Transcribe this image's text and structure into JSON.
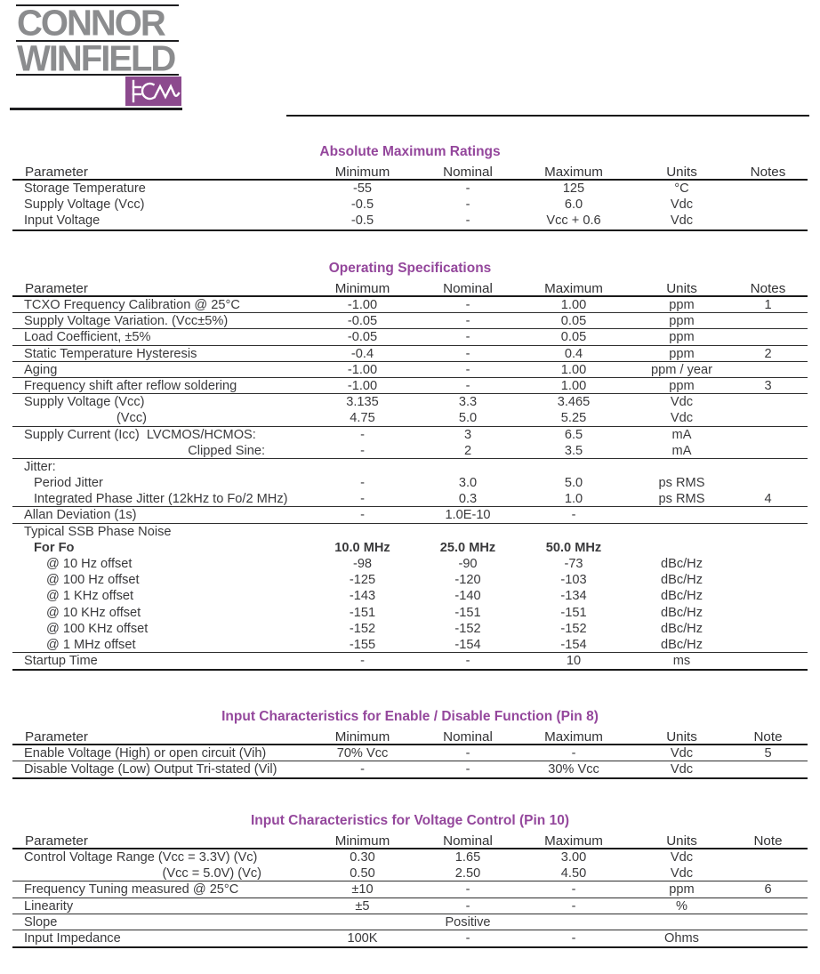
{
  "logo": {
    "line1": "CONNOR",
    "line2": "WINFIELD",
    "monogram_icon": "hcw-waveform-icon",
    "brand_purple": "#8c4a8e",
    "brand_gray": "#8b8c8e"
  },
  "accent_title_color": "#94479c",
  "tables": [
    {
      "title": "Absolute Maximum Ratings",
      "headers": [
        "Parameter",
        "Minimum",
        "Nominal",
        "Maximum",
        "Units",
        "Notes"
      ],
      "rows": [
        {
          "c": [
            "Storage Temperature",
            "-55",
            "-",
            "125",
            "°C",
            ""
          ],
          "v": "",
          "b": false,
          "l": false
        },
        {
          "c": [
            "Supply Voltage (Vcc)",
            "-0.5",
            "-",
            "6.0",
            "Vdc",
            ""
          ],
          "v": "",
          "b": false,
          "l": false
        },
        {
          "c": [
            "Input Voltage",
            "-0.5",
            "-",
            "Vcc + 0.6",
            "Vdc",
            ""
          ],
          "v": "",
          "b": false,
          "l": false
        }
      ]
    },
    {
      "title": "Operating Specifications",
      "headers": [
        "Parameter",
        "Minimum",
        "Nominal",
        "Maximum",
        "Units",
        "Notes"
      ],
      "rows": [
        {
          "c": [
            "TCXO Frequency Calibration @ 25°C",
            "-1.00",
            "-",
            "1.00",
            "ppm",
            "1"
          ],
          "v": "",
          "b": false,
          "l": true
        },
        {
          "c": [
            "Supply Voltage Variation. (Vcc±5%)",
            "-0.05",
            "-",
            "0.05",
            "ppm",
            ""
          ],
          "v": "",
          "b": false,
          "l": true
        },
        {
          "c": [
            "Load Coefficient, ±5%",
            "-0.05",
            "-",
            "0.05",
            "ppm",
            ""
          ],
          "v": "",
          "b": false,
          "l": true
        },
        {
          "c": [
            "Static Temperature Hysteresis",
            "-0.4",
            "-",
            "0.4",
            "ppm",
            "2"
          ],
          "v": "",
          "b": false,
          "l": true
        },
        {
          "c": [
            "Aging",
            "-1.00",
            "-",
            "1.00",
            "ppm / year",
            ""
          ],
          "v": "",
          "b": false,
          "l": true
        },
        {
          "c": [
            "Frequency shift after reflow soldering",
            "-1.00",
            "-",
            "1.00",
            "ppm",
            "3"
          ],
          "v": "",
          "b": false,
          "l": true
        },
        {
          "c": [
            "Supply Voltage (Vcc)",
            "3.135",
            "3.3",
            "3.465",
            "Vdc",
            ""
          ],
          "v": "",
          "b": false,
          "l": false
        },
        {
          "c": [
            "(Vcc)",
            "4.75",
            "5.0",
            "5.25",
            "Vdc",
            ""
          ],
          "v": "rb138",
          "b": false,
          "l": true
        },
        {
          "c": [
            "Supply Current (Icc)  LVCMOS/HCMOS:",
            "-",
            "3",
            "6.5",
            "mA",
            ""
          ],
          "v": "",
          "b": false,
          "l": false
        },
        {
          "c": [
            "Clipped Sine:",
            "-",
            "2",
            "3.5",
            "mA",
            ""
          ],
          "v": "rb271",
          "b": false,
          "l": true
        },
        {
          "c": [
            "Jitter:",
            "",
            "",
            "",
            "",
            ""
          ],
          "v": "",
          "b": false,
          "l": false
        },
        {
          "c": [
            "Period Jitter",
            "-",
            "3.0",
            "5.0",
            "ps RMS",
            ""
          ],
          "v": "i1",
          "b": false,
          "l": false
        },
        {
          "c": [
            "Integrated Phase Jitter (12kHz to Fo/2 MHz)",
            "-",
            "0.3",
            "1.0",
            "ps RMS",
            "4"
          ],
          "v": "i1",
          "b": false,
          "l": true
        },
        {
          "c": [
            "Allan Deviation (1s)",
            "-",
            "1.0E-10",
            "-",
            "",
            ""
          ],
          "v": "",
          "b": false,
          "l": true
        },
        {
          "c": [
            "Typical SSB Phase Noise",
            "",
            "",
            "",
            "",
            ""
          ],
          "v": "",
          "b": false,
          "l": false
        },
        {
          "c": [
            "For Fo",
            "10.0 MHz",
            "25.0 MHz",
            "50.0 MHz",
            "",
            ""
          ],
          "v": "i1",
          "b": true,
          "l": false
        },
        {
          "c": [
            "@ 10 Hz offset",
            "-98",
            "-90",
            "-73",
            "dBc/Hz",
            ""
          ],
          "v": "i2",
          "b": false,
          "l": false
        },
        {
          "c": [
            "@ 100 Hz offset",
            "-125",
            "-120",
            "-103",
            "dBc/Hz",
            ""
          ],
          "v": "i2",
          "b": false,
          "l": false
        },
        {
          "c": [
            "@ 1 KHz offset",
            "-143",
            "-140",
            "-134",
            "dBc/Hz",
            ""
          ],
          "v": "i2",
          "b": false,
          "l": false
        },
        {
          "c": [
            "@ 10 KHz offset",
            "-151",
            "-151",
            "-151",
            "dBc/Hz",
            ""
          ],
          "v": "i2",
          "b": false,
          "l": false
        },
        {
          "c": [
            "@ 100 KHz offset",
            "-152",
            "-152",
            "-152",
            "dBc/Hz",
            ""
          ],
          "v": "i2",
          "b": false,
          "l": false
        },
        {
          "c": [
            "@ 1 MHz offset",
            "-155",
            "-154",
            "-154",
            "dBc/Hz",
            ""
          ],
          "v": "i2",
          "b": false,
          "l": true
        },
        {
          "c": [
            "Startup Time",
            "-",
            "-",
            "10",
            "ms",
            ""
          ],
          "v": "",
          "b": false,
          "l": false
        }
      ]
    },
    {
      "title": "Input Characteristics for Enable / Disable Function (Pin 8)",
      "headers": [
        "Parameter",
        "Minimum",
        "Nominal",
        "Maximum",
        "Units",
        "Note"
      ],
      "rows": [
        {
          "c": [
            "Enable Voltage (High) or open circuit (Vih)",
            "70% Vcc",
            "-",
            "-",
            "Vdc",
            "5"
          ],
          "v": "",
          "b": false,
          "l": true
        },
        {
          "c": [
            "Disable Voltage (Low) Output Tri-stated (Vil)",
            "-",
            "-",
            "30% Vcc",
            "Vdc",
            ""
          ],
          "v": "",
          "b": false,
          "l": false
        }
      ]
    },
    {
      "title": "Input Characteristics for Voltage Control (Pin 10)",
      "headers": [
        "Parameter",
        "Minimum",
        "Nominal",
        "Maximum",
        "Units",
        "Note"
      ],
      "rows": [
        {
          "c": [
            "Control Voltage Range (Vcc = 3.3V) (Vc)",
            "0.30",
            "1.65",
            "3.00",
            "Vdc",
            ""
          ],
          "v": "",
          "b": false,
          "l": false
        },
        {
          "c": [
            "(Vcc = 5.0V) (Vc)",
            "0.50",
            "2.50",
            "4.50",
            "Vdc",
            ""
          ],
          "v": "rb267",
          "b": false,
          "l": true
        },
        {
          "c": [
            "Frequency Tuning measured @ 25°C",
            "±10",
            "-",
            "-",
            "ppm",
            "6"
          ],
          "v": "",
          "b": false,
          "l": true
        },
        {
          "c": [
            "Linearity",
            "±5",
            "-",
            "-",
            "%",
            ""
          ],
          "v": "",
          "b": false,
          "l": true
        },
        {
          "c": [
            "Slope",
            "",
            "Positive",
            "",
            "",
            ""
          ],
          "v": "",
          "b": false,
          "l": true
        },
        {
          "c": [
            "Input Impedance",
            "100K",
            "-",
            "-",
            "Ohms",
            ""
          ],
          "v": "",
          "b": false,
          "l": false
        }
      ]
    }
  ]
}
